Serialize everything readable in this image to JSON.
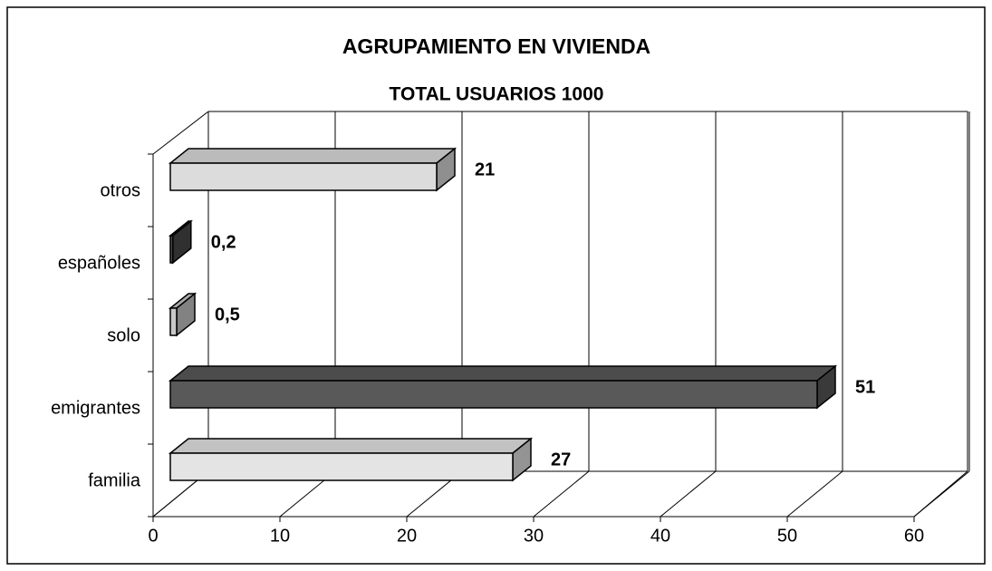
{
  "chart_data": {
    "type": "bar",
    "orientation": "horizontal",
    "title": "AGRUPAMIENTO EN VIVIENDA",
    "subtitle": "TOTAL USUARIOS 1000",
    "categories": [
      "familia",
      "emigrantes",
      "solo",
      "españoles",
      "otros"
    ],
    "values": [
      27,
      51,
      0.5,
      0.2,
      21
    ],
    "value_labels": [
      "27",
      "51",
      "0,5",
      "0,2",
      "21"
    ],
    "colors": [
      "#e4e4e4",
      "#595959",
      "#c8c8c8",
      "#4a4a4a",
      "#dcdcdc"
    ],
    "xlim": [
      0,
      60
    ],
    "xticks": [
      0,
      10,
      20,
      30,
      40,
      50,
      60
    ],
    "grid": true
  }
}
